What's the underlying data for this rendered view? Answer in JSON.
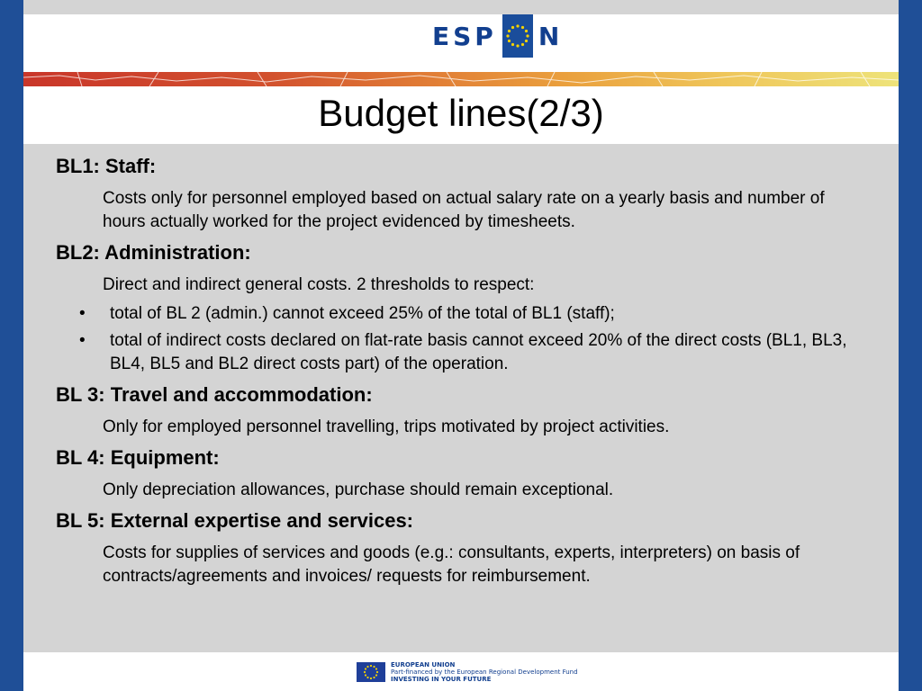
{
  "header": {
    "logo_letters_left": "ESP",
    "logo_letters_right": "N",
    "logo_mark_icon": "eu-stars-circle-icon"
  },
  "slide": {
    "title": "Budget lines(2/3)"
  },
  "sections": [
    {
      "heading": "BL1: Staff:",
      "text": "Costs only for personnel employed based on actual salary rate on a yearly basis and number of hours actually worked for the project evidenced by timesheets."
    },
    {
      "heading": "BL2: Administration:",
      "text": "Direct and indirect general costs. 2 thresholds to respect:",
      "bullets": [
        "total of BL 2 (admin.) cannot exceed 25% of the total of BL1 (staff);",
        "total of indirect costs declared on flat-rate basis cannot exceed 20% of the direct costs (BL1, BL3, BL4, BL5 and BL2 direct costs part) of the operation."
      ]
    },
    {
      "heading": "BL 3: Travel and accommodation:",
      "text": "Only for employed personnel travelling, trips motivated by project activities."
    },
    {
      "heading": "BL 4: Equipment:",
      "text": "Only depreciation allowances, purchase should remain exceptional."
    },
    {
      "heading": "BL 5: External expertise and services:",
      "text": "Costs for supplies of services and goods (e.g.: consultants, experts, interpreters) on basis of contracts/agreements and invoices/ requests for reimbursement."
    }
  ],
  "footer": {
    "line1": "EUROPEAN UNION",
    "line2": "Part-financed by the European Regional Development Fund",
    "line3": "INVESTING IN YOUR FUTURE",
    "flag_icon": "eu-flag-icon"
  },
  "colors": {
    "frame_blue": "#1f4f97",
    "content_gray": "#d4d4d4",
    "logo_blue": "#123f8f"
  }
}
